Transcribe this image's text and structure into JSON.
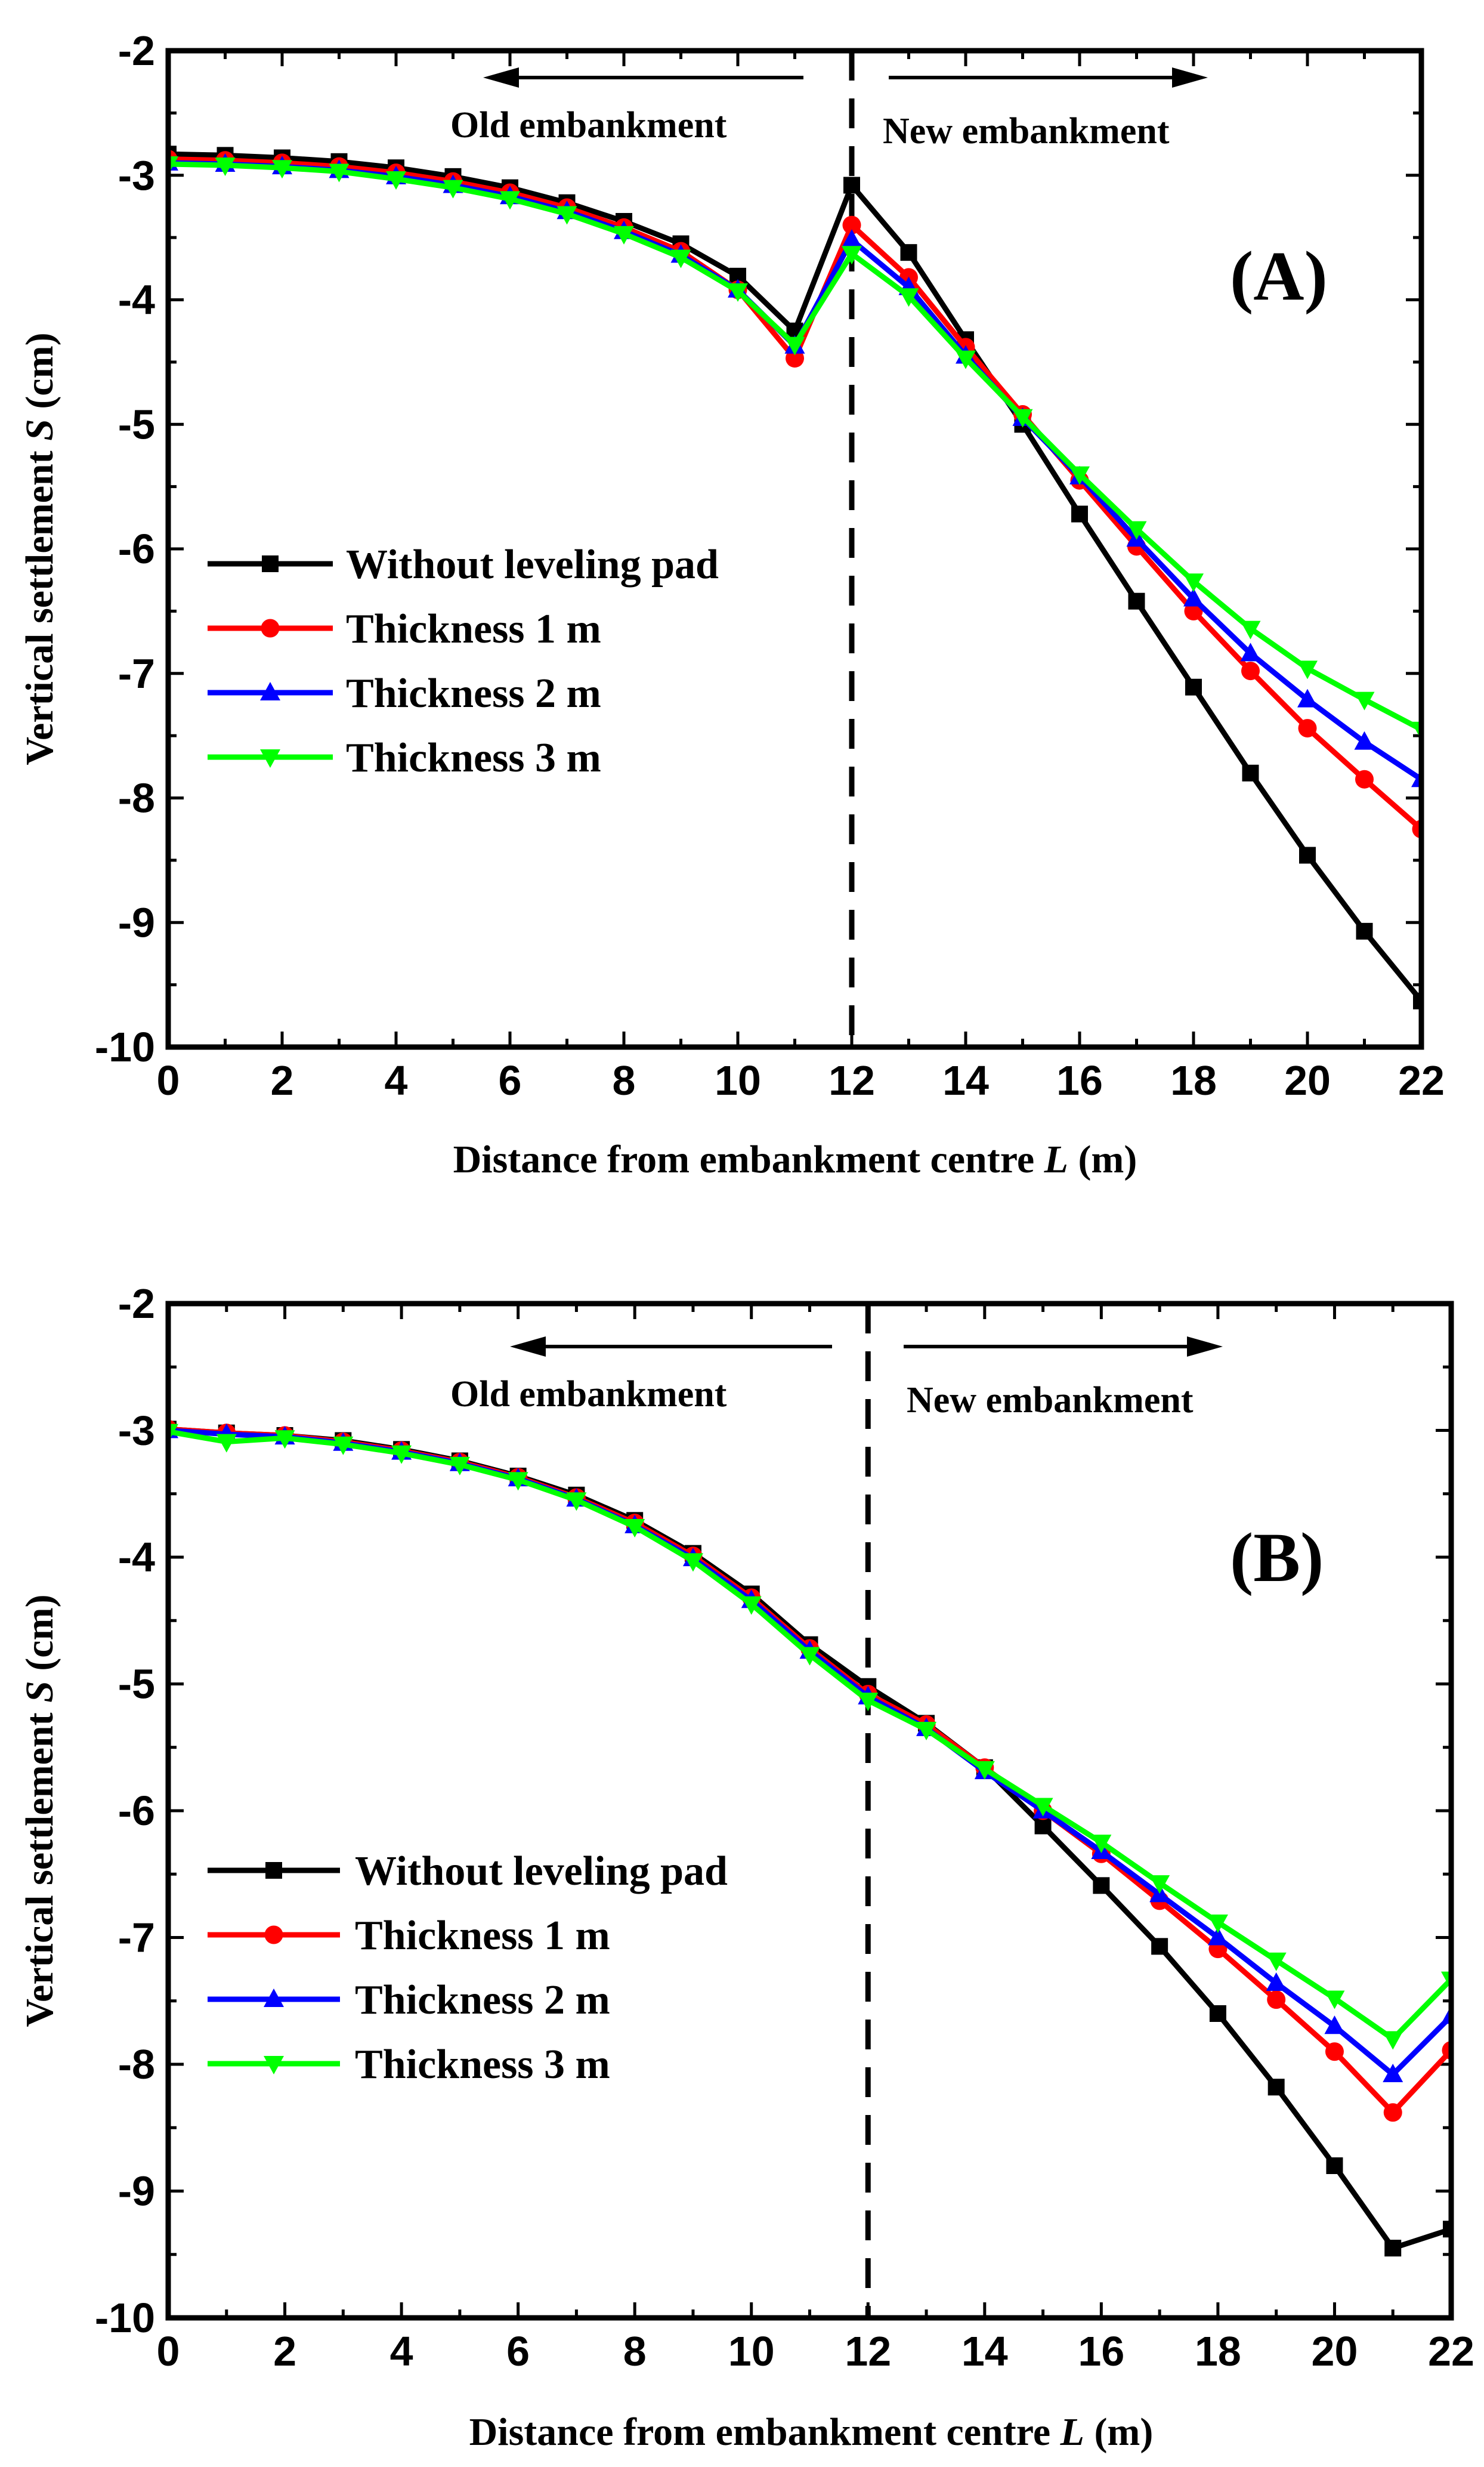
{
  "colors": {
    "without": "#000000",
    "t1": "#ff0000",
    "t2": "#0000ff",
    "t3": "#00ff00"
  },
  "chart_data": [
    {
      "type": "line",
      "panel_label": "(A)",
      "title": "",
      "xlabel": "Distance from embankment centre L (m)",
      "xlabel_parts": [
        "Distance from embankment centre ",
        "L",
        " (m)"
      ],
      "ylabel": "Vertical settlement  S (cm)",
      "ylabel_parts": [
        "Vertical settlement  ",
        "S",
        " (cm)"
      ],
      "xlim": [
        0,
        22
      ],
      "ylim": [
        -10,
        -2
      ],
      "xticks": [
        0,
        2,
        4,
        6,
        8,
        10,
        12,
        14,
        16,
        18,
        20,
        22
      ],
      "yticks": [
        -2,
        -3,
        -4,
        -5,
        -6,
        -7,
        -8,
        -9,
        -10
      ],
      "annotations": {
        "old": "Old embankment",
        "new": "New embankment"
      },
      "divider_x": 12,
      "x": [
        0,
        1,
        2,
        3,
        4,
        5,
        6,
        7,
        8,
        9,
        10,
        11,
        12,
        13,
        14,
        15,
        16,
        17,
        18,
        19,
        20,
        21,
        22
      ],
      "series": [
        {
          "name": "Without leveling pad",
          "color_key": "without",
          "marker": "square",
          "values": [
            -2.83,
            -2.84,
            -2.86,
            -2.89,
            -2.94,
            -3.01,
            -3.1,
            -3.22,
            -3.37,
            -3.55,
            -3.81,
            -4.25,
            -3.08,
            -3.62,
            -4.32,
            -5.0,
            -5.72,
            -6.42,
            -7.11,
            -7.8,
            -8.46,
            -9.07,
            -9.63
          ]
        },
        {
          "name": "Thickness 1 m",
          "color_key": "t1",
          "marker": "circle",
          "values": [
            -2.87,
            -2.88,
            -2.9,
            -2.93,
            -2.98,
            -3.05,
            -3.14,
            -3.26,
            -3.42,
            -3.61,
            -3.92,
            -4.47,
            -3.4,
            -3.82,
            -4.38,
            -4.92,
            -5.45,
            -5.98,
            -6.5,
            -6.98,
            -7.44,
            -7.85,
            -8.25
          ]
        },
        {
          "name": "Thickness 2 m",
          "color_key": "t2",
          "marker": "triangle-up",
          "values": [
            -2.9,
            -2.91,
            -2.93,
            -2.96,
            -3.01,
            -3.08,
            -3.17,
            -3.29,
            -3.45,
            -3.64,
            -3.92,
            -4.37,
            -3.52,
            -3.9,
            -4.45,
            -4.95,
            -5.42,
            -5.92,
            -6.4,
            -6.84,
            -7.21,
            -7.55,
            -7.85
          ]
        },
        {
          "name": "Thickness 3 m",
          "color_key": "t3",
          "marker": "triangle-down",
          "values": [
            -2.91,
            -2.92,
            -2.94,
            -2.97,
            -3.03,
            -3.1,
            -3.19,
            -3.31,
            -3.47,
            -3.66,
            -3.93,
            -4.36,
            -3.63,
            -3.97,
            -4.47,
            -4.94,
            -5.4,
            -5.84,
            -6.26,
            -6.64,
            -6.96,
            -7.21,
            -7.45
          ]
        }
      ]
    },
    {
      "type": "line",
      "panel_label": "(B)",
      "title": "",
      "xlabel": "Distance from embankment centre L (m)",
      "xlabel_parts": [
        "Distance from embankment centre ",
        "L",
        " (m)"
      ],
      "ylabel": "Vertical settlement  S (cm)",
      "ylabel_parts": [
        "Vertical settlement  ",
        "S",
        " (cm)"
      ],
      "xlim": [
        0,
        22
      ],
      "ylim": [
        -10,
        -2
      ],
      "xticks": [
        0,
        2,
        4,
        6,
        8,
        10,
        12,
        14,
        16,
        18,
        20,
        22
      ],
      "yticks": [
        -2,
        -3,
        -4,
        -5,
        -6,
        -7,
        -8,
        -9,
        -10
      ],
      "annotations": {
        "old": "Old embankment",
        "new": "New embankment"
      },
      "divider_x": 12,
      "x": [
        0,
        1,
        2,
        3,
        4,
        5,
        6,
        7,
        8,
        9,
        10,
        11,
        12,
        13,
        14,
        15,
        16,
        17,
        18,
        19,
        20,
        21,
        22
      ],
      "series": [
        {
          "name": "Without leveling pad",
          "color_key": "without",
          "marker": "square",
          "values": [
            -2.99,
            -3.02,
            -3.04,
            -3.08,
            -3.15,
            -3.24,
            -3.36,
            -3.51,
            -3.71,
            -3.97,
            -4.29,
            -4.69,
            -5.02,
            -5.31,
            -5.66,
            -6.12,
            -6.59,
            -7.07,
            -7.6,
            -8.18,
            -8.8,
            -9.45,
            -9.3
          ]
        },
        {
          "name": "Thickness 1 m",
          "color_key": "t1",
          "marker": "circle",
          "values": [
            -2.99,
            -3.02,
            -3.04,
            -3.09,
            -3.16,
            -3.25,
            -3.37,
            -3.53,
            -3.73,
            -3.99,
            -4.32,
            -4.72,
            -5.08,
            -5.32,
            -5.66,
            -6.0,
            -6.34,
            -6.71,
            -7.09,
            -7.49,
            -7.9,
            -8.38,
            -7.89
          ]
        },
        {
          "name": "Thickness 2 m",
          "color_key": "t2",
          "marker": "triangle-up",
          "values": [
            -3.0,
            -3.03,
            -3.05,
            -3.1,
            -3.17,
            -3.26,
            -3.38,
            -3.54,
            -3.75,
            -4.01,
            -4.34,
            -4.74,
            -5.1,
            -5.35,
            -5.69,
            -6.0,
            -6.32,
            -6.66,
            -7.0,
            -7.36,
            -7.7,
            -8.08,
            -7.62
          ]
        },
        {
          "name": "Thickness 3 m",
          "color_key": "t3",
          "marker": "triangle-down",
          "values": [
            -3.01,
            -3.09,
            -3.06,
            -3.11,
            -3.18,
            -3.27,
            -3.39,
            -3.55,
            -3.76,
            -4.03,
            -4.37,
            -4.77,
            -5.13,
            -5.36,
            -5.67,
            -5.96,
            -6.25,
            -6.57,
            -6.88,
            -7.18,
            -7.48,
            -7.8,
            -7.33
          ]
        }
      ]
    }
  ]
}
